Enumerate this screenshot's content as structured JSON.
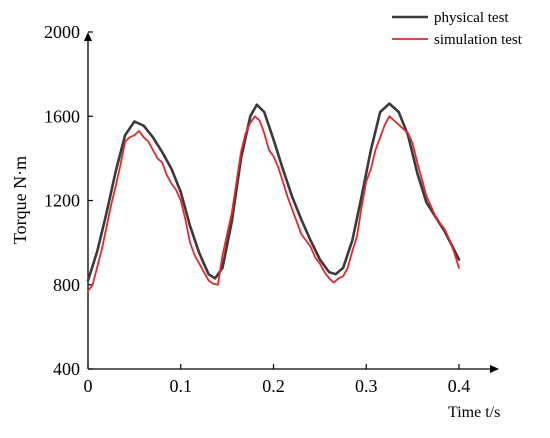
{
  "chart_data": {
    "type": "line",
    "title": "",
    "xlabel": "Time t/s",
    "ylabel": "Torque N·m",
    "xlim": [
      0,
      0.4
    ],
    "ylim": [
      400,
      2000
    ],
    "x_ticks": [
      "0",
      "0.1",
      "0.2",
      "0.3",
      "0.4"
    ],
    "y_ticks": [
      "400",
      "800",
      "1200",
      "1600",
      "2000"
    ],
    "grid": false,
    "legend_position": "top-right",
    "series": [
      {
        "name": "physical test",
        "color": "#3a3a3a",
        "points": [
          [
            0,
            820
          ],
          [
            0.01,
            960
          ],
          [
            0.02,
            1140
          ],
          [
            0.03,
            1340
          ],
          [
            0.04,
            1510
          ],
          [
            0.05,
            1575
          ],
          [
            0.06,
            1555
          ],
          [
            0.07,
            1500
          ],
          [
            0.08,
            1430
          ],
          [
            0.09,
            1350
          ],
          [
            0.1,
            1240
          ],
          [
            0.11,
            1080
          ],
          [
            0.12,
            950
          ],
          [
            0.13,
            850
          ],
          [
            0.137,
            830
          ],
          [
            0.145,
            880
          ],
          [
            0.155,
            1100
          ],
          [
            0.165,
            1400
          ],
          [
            0.175,
            1600
          ],
          [
            0.182,
            1655
          ],
          [
            0.19,
            1620
          ],
          [
            0.2,
            1490
          ],
          [
            0.21,
            1350
          ],
          [
            0.22,
            1220
          ],
          [
            0.23,
            1110
          ],
          [
            0.24,
            1010
          ],
          [
            0.25,
            920
          ],
          [
            0.26,
            860
          ],
          [
            0.267,
            850
          ],
          [
            0.275,
            880
          ],
          [
            0.285,
            1010
          ],
          [
            0.295,
            1220
          ],
          [
            0.305,
            1440
          ],
          [
            0.315,
            1620
          ],
          [
            0.325,
            1660
          ],
          [
            0.335,
            1620
          ],
          [
            0.345,
            1510
          ],
          [
            0.355,
            1330
          ],
          [
            0.365,
            1190
          ],
          [
            0.375,
            1120
          ],
          [
            0.385,
            1050
          ],
          [
            0.4,
            920
          ]
        ]
      },
      {
        "name": "simulation test",
        "color": "#e8262a",
        "points": [
          [
            0,
            770
          ],
          [
            0.005,
            800
          ],
          [
            0.015,
            970
          ],
          [
            0.025,
            1180
          ],
          [
            0.03,
            1270
          ],
          [
            0.035,
            1370
          ],
          [
            0.04,
            1480
          ],
          [
            0.045,
            1500
          ],
          [
            0.05,
            1510
          ],
          [
            0.055,
            1530
          ],
          [
            0.06,
            1500
          ],
          [
            0.065,
            1480
          ],
          [
            0.07,
            1440
          ],
          [
            0.075,
            1400
          ],
          [
            0.08,
            1380
          ],
          [
            0.085,
            1320
          ],
          [
            0.09,
            1280
          ],
          [
            0.095,
            1250
          ],
          [
            0.1,
            1200
          ],
          [
            0.105,
            1110
          ],
          [
            0.11,
            1000
          ],
          [
            0.115,
            940
          ],
          [
            0.12,
            900
          ],
          [
            0.125,
            860
          ],
          [
            0.13,
            820
          ],
          [
            0.135,
            805
          ],
          [
            0.14,
            800
          ],
          [
            0.145,
            940
          ],
          [
            0.155,
            1140
          ],
          [
            0.165,
            1430
          ],
          [
            0.17,
            1520
          ],
          [
            0.175,
            1570
          ],
          [
            0.18,
            1600
          ],
          [
            0.185,
            1580
          ],
          [
            0.19,
            1520
          ],
          [
            0.195,
            1440
          ],
          [
            0.2,
            1410
          ],
          [
            0.205,
            1360
          ],
          [
            0.21,
            1290
          ],
          [
            0.215,
            1220
          ],
          [
            0.22,
            1160
          ],
          [
            0.225,
            1100
          ],
          [
            0.23,
            1040
          ],
          [
            0.235,
            1010
          ],
          [
            0.24,
            980
          ],
          [
            0.245,
            930
          ],
          [
            0.25,
            900
          ],
          [
            0.255,
            860
          ],
          [
            0.26,
            830
          ],
          [
            0.265,
            810
          ],
          [
            0.27,
            830
          ],
          [
            0.275,
            840
          ],
          [
            0.28,
            880
          ],
          [
            0.285,
            960
          ],
          [
            0.29,
            1030
          ],
          [
            0.295,
            1170
          ],
          [
            0.3,
            1290
          ],
          [
            0.305,
            1350
          ],
          [
            0.31,
            1440
          ],
          [
            0.315,
            1500
          ],
          [
            0.32,
            1560
          ],
          [
            0.325,
            1600
          ],
          [
            0.33,
            1580
          ],
          [
            0.335,
            1560
          ],
          [
            0.34,
            1540
          ],
          [
            0.345,
            1520
          ],
          [
            0.35,
            1470
          ],
          [
            0.355,
            1380
          ],
          [
            0.36,
            1300
          ],
          [
            0.365,
            1220
          ],
          [
            0.37,
            1170
          ],
          [
            0.375,
            1120
          ],
          [
            0.38,
            1090
          ],
          [
            0.385,
            1060
          ],
          [
            0.39,
            1010
          ],
          [
            0.395,
            950
          ],
          [
            0.4,
            880
          ]
        ]
      }
    ]
  }
}
